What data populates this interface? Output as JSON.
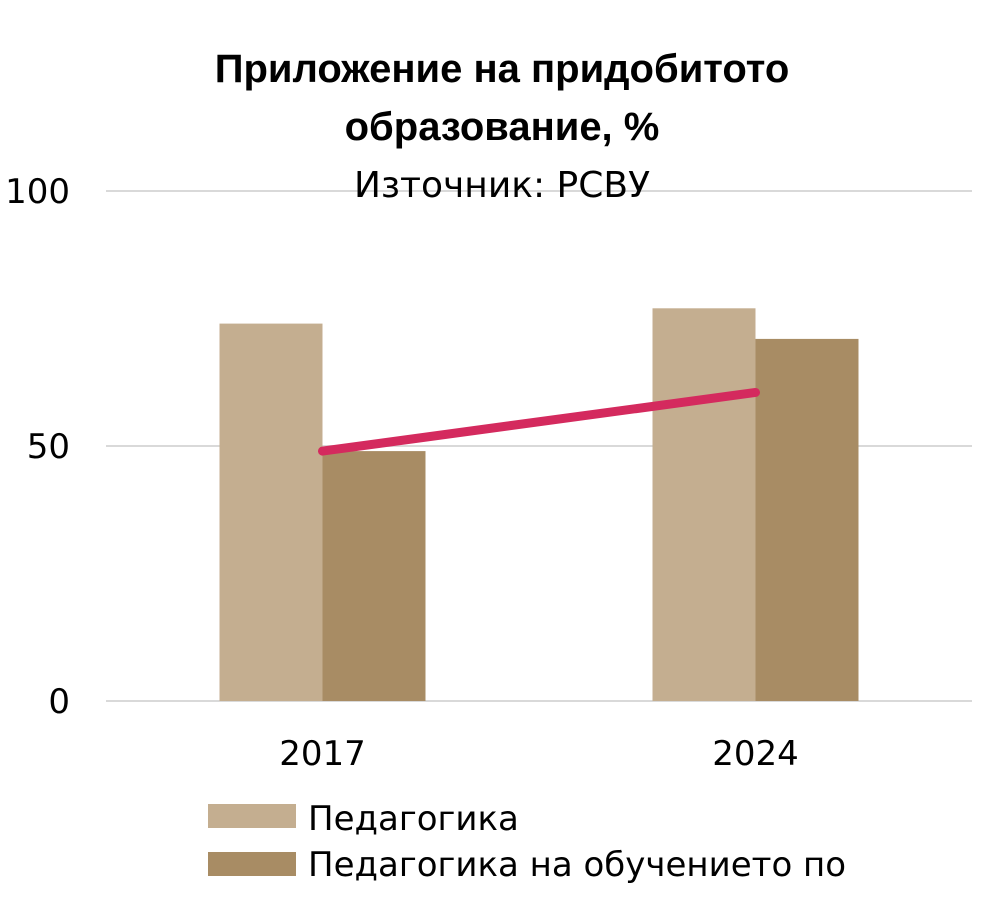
{
  "chart_data": {
    "type": "bar",
    "title_lines": [
      "Приложение на придобитото",
      "образование, %"
    ],
    "subtitle": "Източник: РСВУ",
    "xlabel": "",
    "ylabel": "",
    "categories": [
      "2017",
      "2024"
    ],
    "ylim": [
      0,
      100
    ],
    "yticks": [
      0,
      50,
      100
    ],
    "grid": true,
    "legend_position": "bottom",
    "series": [
      {
        "name": "Педагогика",
        "type": "bar",
        "color": "#c4ae90",
        "values": [
          74,
          77
        ]
      },
      {
        "name": "Педагогика на обучението по",
        "type": "bar",
        "color": "#a88c64",
        "values": [
          49,
          71
        ]
      },
      {
        "type": "line",
        "color": "#d42a5e",
        "values": [
          49,
          60.5
        ]
      }
    ]
  }
}
